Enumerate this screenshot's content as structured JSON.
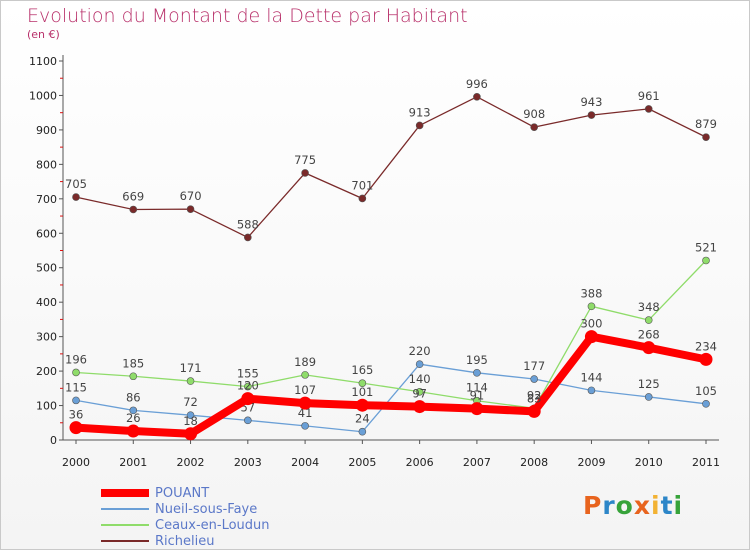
{
  "title": "Evolution du Montant de la Dette par Habitant",
  "subtitle": "(en €)",
  "logo": "Proxiti",
  "logo_colors": [
    "#e8641e",
    "#2d86c8",
    "#37a33a",
    "#e8641e",
    "#f2b233",
    "#2d86c8",
    "#37a33a"
  ],
  "chart_data": {
    "type": "line",
    "title": "Evolution du Montant de la Dette par Habitant",
    "subtitle": "(en €)",
    "xlabel": "",
    "ylabel": "",
    "x": [
      "2000",
      "2001",
      "2002",
      "2003",
      "2004",
      "2005",
      "2006",
      "2007",
      "2008",
      "2009",
      "2010",
      "2011"
    ],
    "ylim": [
      0,
      1100
    ],
    "yticks": [
      0,
      100,
      200,
      300,
      400,
      500,
      600,
      700,
      800,
      900,
      1000,
      1100
    ],
    "grid": false,
    "legend": "bottom-left",
    "series": [
      {
        "name": "POUANT",
        "color": "#ff0000",
        "emphasis": true,
        "values": [
          36,
          26,
          18,
          120,
          107,
          101,
          97,
          91,
          83,
          300,
          268,
          234
        ]
      },
      {
        "name": "Nueil-sous-Faye",
        "color": "#6a9fd6",
        "values": [
          115,
          86,
          72,
          57,
          41,
          24,
          220,
          195,
          177,
          144,
          125,
          105
        ]
      },
      {
        "name": "Ceaux-en-Loudun",
        "color": "#8fdc6a",
        "values": [
          196,
          185,
          171,
          155,
          189,
          165,
          140,
          114,
          92,
          388,
          348,
          521
        ]
      },
      {
        "name": "Richelieu",
        "color": "#7a2a2a",
        "values": [
          705,
          669,
          670,
          588,
          775,
          701,
          913,
          996,
          908,
          943,
          961,
          879
        ]
      }
    ]
  }
}
